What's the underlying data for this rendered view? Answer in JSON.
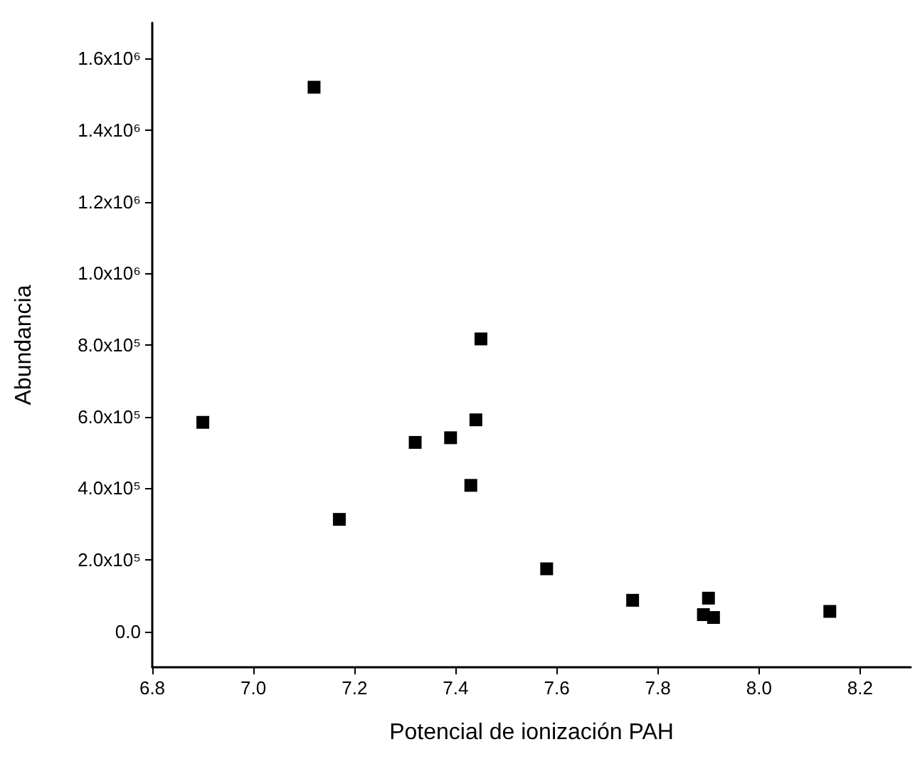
{
  "chart_data": {
    "type": "scatter",
    "xlabel": "Potencial de ionización PAH",
    "ylabel": "Abundancia",
    "x": [
      6.9,
      7.12,
      7.17,
      7.32,
      7.39,
      7.43,
      7.44,
      7.45,
      7.58,
      7.75,
      7.89,
      7.9,
      7.91,
      8.14
    ],
    "series": [
      {
        "color": "#000000",
        "values": [
          584000,
          1520000,
          313000,
          528000,
          541000,
          408000,
          591000,
          817000,
          175000,
          87000,
          47000,
          93000,
          39000,
          56000
        ]
      }
    ],
    "marker": "square",
    "grid": false,
    "xlim": [
      6.8,
      8.3
    ],
    "xticks": [
      6.8,
      {
        "value": 7,
        "label": "7.0"
      },
      7.2,
      7.4,
      7.6,
      7.8,
      {
        "value": 8,
        "label": "8.0"
      },
      8.2
    ],
    "ylim": [
      -100000,
      1700000
    ],
    "yticks": [
      {
        "value": 0,
        "label": "0.0"
      },
      {
        "value": 200000,
        "label": "2.0x10⁵"
      },
      {
        "value": 400000,
        "label": "4.0x10⁵"
      },
      {
        "value": 600000,
        "label": "6.0x10⁵"
      },
      {
        "value": 800000,
        "label": "8.0x10⁵"
      },
      {
        "value": 1000000,
        "label": "1.0x10⁶"
      },
      {
        "value": 1200000,
        "label": "1.2x10⁶"
      },
      {
        "value": 1400000,
        "label": "1.4x10⁶"
      },
      {
        "value": 1600000,
        "label": "1.6x10⁶"
      }
    ]
  }
}
